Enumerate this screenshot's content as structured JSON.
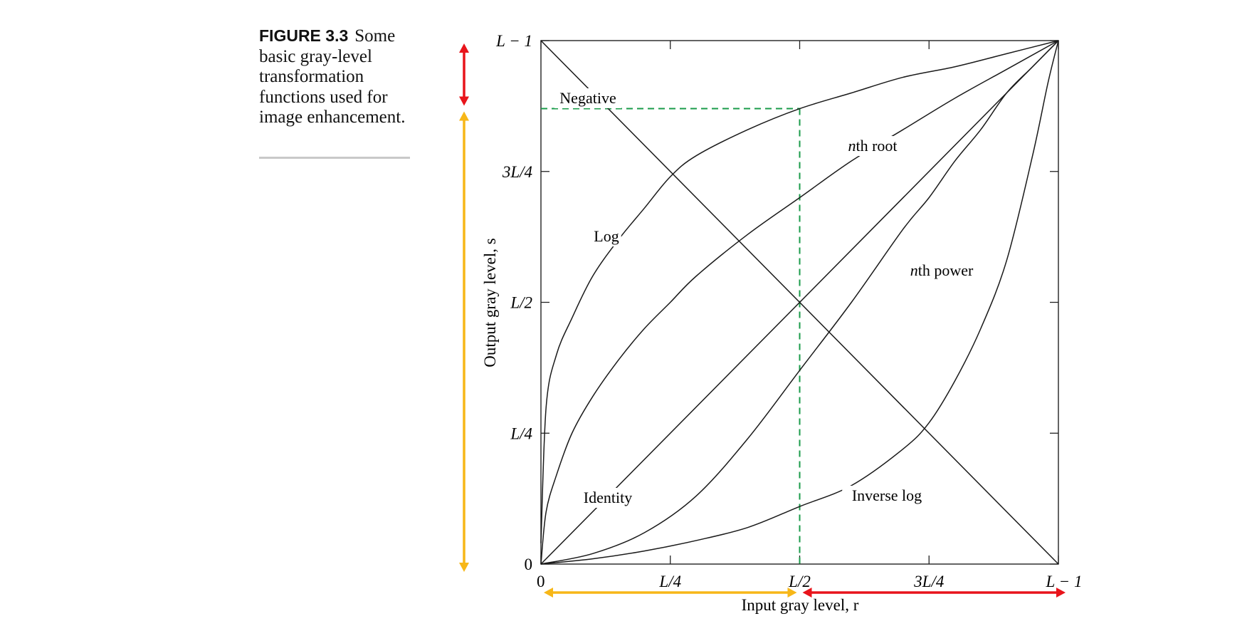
{
  "caption": {
    "number": "FIGURE 3.3",
    "text": "Some basic gray-level transformation functions used for image enhancement."
  },
  "chart_data": {
    "type": "line",
    "title": "",
    "xlabel": "Input gray level, r",
    "ylabel": "Output gray level, s",
    "xlim": [
      0,
      1
    ],
    "ylim": [
      0,
      1
    ],
    "x_ticks": [
      {
        "value": 0,
        "label": "0"
      },
      {
        "value": 0.25,
        "label": "L/4"
      },
      {
        "value": 0.5,
        "label": "L/2"
      },
      {
        "value": 0.75,
        "label": "3L/4"
      },
      {
        "value": 1,
        "label": "L − 1"
      }
    ],
    "y_ticks": [
      {
        "value": 0,
        "label": "0"
      },
      {
        "value": 0.25,
        "label": "L/4"
      },
      {
        "value": 0.5,
        "label": "L/2"
      },
      {
        "value": 0.75,
        "label": "3L/4"
      },
      {
        "value": 1,
        "label": "L − 1"
      }
    ],
    "series": [
      {
        "name": "Negative",
        "x": [
          0,
          1
        ],
        "y": [
          1,
          0
        ]
      },
      {
        "name": "Identity",
        "x": [
          0,
          1
        ],
        "y": [
          0,
          1
        ]
      },
      {
        "name": "Log",
        "x": [
          0,
          0.01,
          0.03,
          0.06,
          0.1,
          0.15,
          0.2,
          0.25,
          0.3,
          0.4,
          0.5,
          0.6,
          0.7,
          0.8,
          0.9,
          1.0
        ],
        "y": [
          0.04,
          0.3,
          0.4,
          0.47,
          0.55,
          0.62,
          0.68,
          0.74,
          0.78,
          0.83,
          0.87,
          0.9,
          0.93,
          0.95,
          0.975,
          1.0
        ]
      },
      {
        "name": "nth root",
        "x": [
          0,
          0.01,
          0.03,
          0.06,
          0.1,
          0.15,
          0.2,
          0.25,
          0.3,
          0.4,
          0.5,
          0.6,
          0.7,
          0.8,
          0.9,
          1.0
        ],
        "y": [
          0.0,
          0.1,
          0.17,
          0.25,
          0.32,
          0.39,
          0.45,
          0.5,
          0.55,
          0.63,
          0.7,
          0.77,
          0.83,
          0.89,
          0.945,
          1.0
        ]
      },
      {
        "name": "nth power",
        "x": [
          0,
          0.1,
          0.2,
          0.3,
          0.4,
          0.5,
          0.6,
          0.7,
          0.75,
          0.8,
          0.85,
          0.9,
          0.95,
          1.0
        ],
        "y": [
          0.0,
          0.02,
          0.06,
          0.13,
          0.24,
          0.37,
          0.5,
          0.64,
          0.7,
          0.77,
          0.83,
          0.9,
          0.95,
          1.0
        ]
      },
      {
        "name": "Inverse log",
        "x": [
          0,
          0.1,
          0.2,
          0.3,
          0.4,
          0.5,
          0.6,
          0.7,
          0.75,
          0.8,
          0.85,
          0.9,
          0.95,
          0.98,
          1.0
        ],
        "y": [
          0.0,
          0.01,
          0.025,
          0.045,
          0.07,
          0.11,
          0.15,
          0.22,
          0.27,
          0.35,
          0.45,
          0.58,
          0.78,
          0.92,
          1.0
        ]
      }
    ],
    "annotations": {
      "dashed_guides": {
        "color": "#1a9b49",
        "x": 0.5,
        "y": 0.87
      },
      "range_arrows": [
        {
          "axis": "y",
          "from": 0.87,
          "to": 1.0,
          "color": "#e8141b"
        },
        {
          "axis": "y",
          "from": 0.0,
          "to": 0.87,
          "color": "#f7b718"
        },
        {
          "axis": "x",
          "from": 0.0,
          "to": 0.5,
          "color": "#f7b718"
        },
        {
          "axis": "x",
          "from": 0.5,
          "to": 1.0,
          "color": "#e8141b"
        }
      ]
    }
  }
}
